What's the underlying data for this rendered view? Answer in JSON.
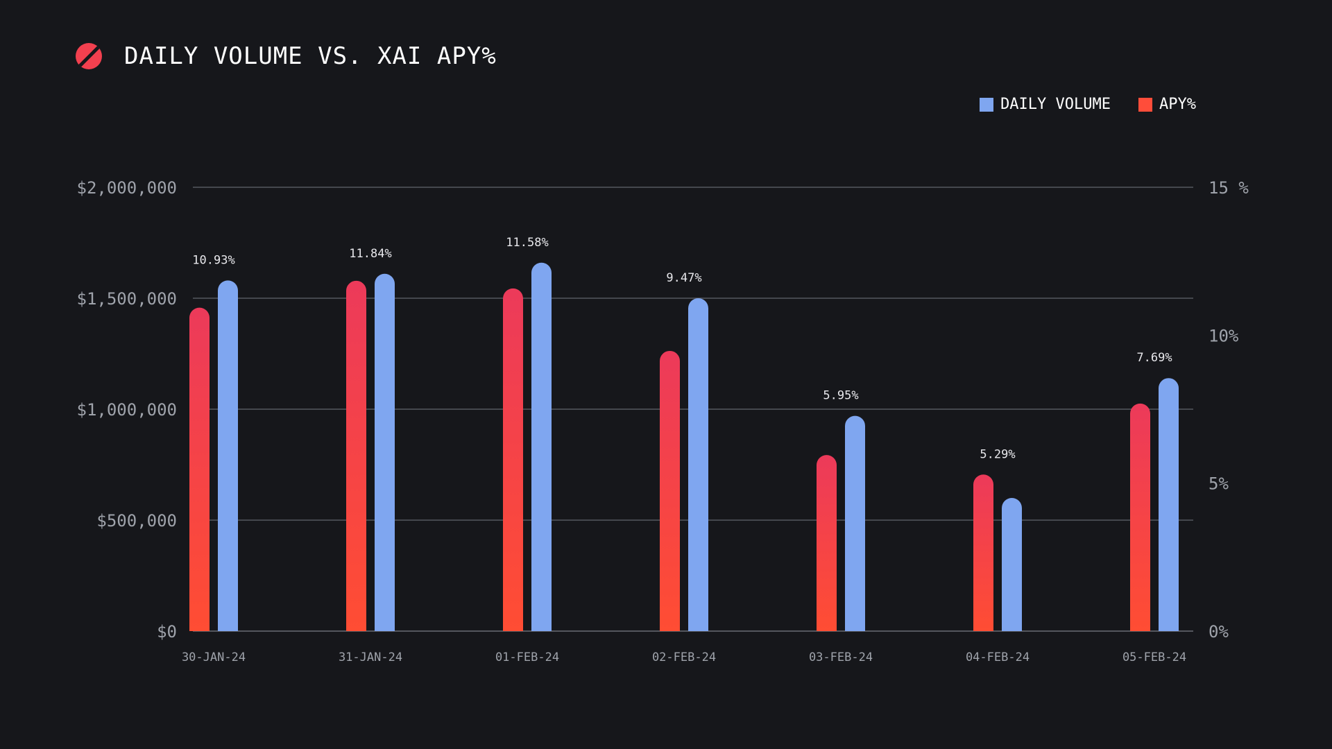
{
  "header": {
    "title": "DAILY VOLUME VS. XAI APY%",
    "icon": "slash-circle-icon"
  },
  "legend": [
    {
      "label": "DAILY VOLUME",
      "color": "#7fa6f0"
    },
    {
      "label": "APY%",
      "color": "#ff4d3a"
    }
  ],
  "chart_data": {
    "type": "bar",
    "title": "DAILY VOLUME VS. XAI APY%",
    "categories": [
      "30-JAN-24",
      "31-JAN-24",
      "01-FEB-24",
      "02-FEB-24",
      "03-FEB-24",
      "04-FEB-24",
      "05-FEB-24"
    ],
    "series": [
      {
        "name": "APY%",
        "axis": "right",
        "values": [
          10.93,
          11.84,
          11.58,
          9.47,
          5.95,
          5.29,
          7.69
        ],
        "labels": [
          "10.93%",
          "11.84%",
          "11.58%",
          "9.47%",
          "5.95%",
          "5.29%",
          "7.69%"
        ],
        "color_top": "#ec3a5a",
        "color_bottom": "#ff4d33"
      },
      {
        "name": "DAILY VOLUME",
        "axis": "left",
        "values": [
          1580000,
          1610000,
          1660000,
          1500000,
          970000,
          600000,
          1140000
        ],
        "color": "#7fa6f0"
      }
    ],
    "left_axis": {
      "ylim": [
        0,
        2000000
      ],
      "ticks": [
        0,
        500000,
        1000000,
        1500000,
        2000000
      ],
      "tick_labels": [
        "$0",
        "$500,000",
        "$1,000,000",
        "$1,500,000",
        "$2,000,000"
      ]
    },
    "right_axis": {
      "ylim": [
        0,
        15
      ],
      "tick_labels": [
        "0%",
        "5%",
        "10%",
        "15 %"
      ]
    },
    "grid": true,
    "legend_position": "top-right"
  }
}
